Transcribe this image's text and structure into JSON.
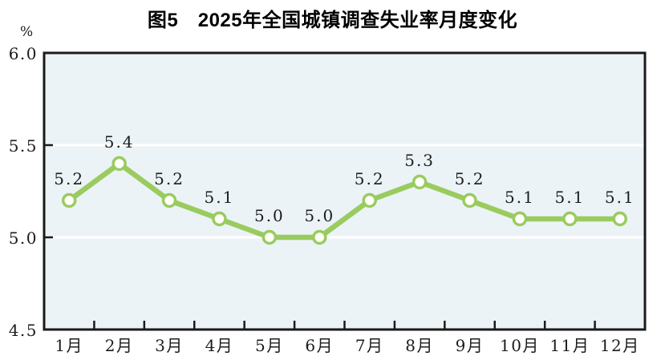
{
  "chart_data": {
    "type": "line",
    "title": "图5　2025年全国城镇调查失业率月度变化",
    "ylabel": "%",
    "xlabel": "",
    "categories": [
      "1月",
      "2月",
      "3月",
      "4月",
      "5月",
      "6月",
      "7月",
      "8月",
      "9月",
      "10月",
      "11月",
      "12月"
    ],
    "values": [
      5.2,
      5.4,
      5.2,
      5.1,
      5.0,
      5.0,
      5.2,
      5.3,
      5.2,
      5.1,
      5.1,
      5.1
    ],
    "point_labels": [
      "5.2",
      "5.4",
      "5.2",
      "5.1",
      "5.0",
      "5.0",
      "5.2",
      "5.3",
      "5.2",
      "5.1",
      "5.1",
      "5.1"
    ],
    "ylim": [
      4.5,
      6.0
    ],
    "yticks": [
      4.5,
      5.0,
      5.5,
      6.0
    ],
    "ytick_labels": [
      "4.5",
      "5.0",
      "5.5",
      "6.0"
    ],
    "gridlines_y": [
      5.0,
      5.5
    ],
    "grid": "horizontal-white-bands",
    "legend": "none",
    "marker": "circle-white-fill-green-ring",
    "colors": {
      "line": "#9ACB5E",
      "marker_fill": "#FEFEFA",
      "plot_background": "#EBF3F7",
      "gridline": "#FFFFFF",
      "axis": "#1A1A1A",
      "label_text": "#1C1C1C",
      "title_text": "#000000",
      "page_background": "#FFFFFF"
    }
  }
}
